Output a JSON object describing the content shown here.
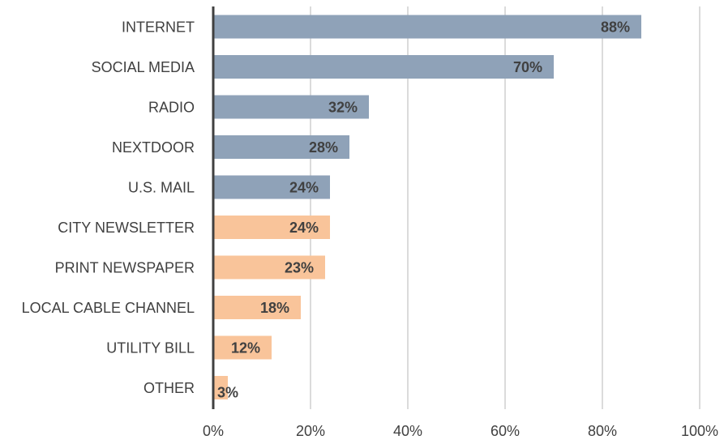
{
  "chart_data": {
    "type": "bar",
    "orientation": "horizontal",
    "categories": [
      "INTERNET",
      "SOCIAL MEDIA",
      "RADIO",
      "NEXTDOOR",
      "U.S. MAIL",
      "CITY NEWSLETTER",
      "PRINT NEWSPAPER",
      "LOCAL CABLE CHANNEL",
      "UTILITY BILL",
      "OTHER"
    ],
    "values": [
      88,
      70,
      32,
      28,
      24,
      24,
      23,
      18,
      12,
      3
    ],
    "data_labels": [
      "88%",
      "70%",
      "32%",
      "28%",
      "24%",
      "24%",
      "23%",
      "18%",
      "12%",
      "3%"
    ],
    "bar_colors": [
      "#8fa2b8",
      "#8fa2b8",
      "#8fa2b8",
      "#8fa2b8",
      "#8fa2b8",
      "#f9c49a",
      "#f9c49a",
      "#f9c49a",
      "#f9c49a",
      "#f9c49a"
    ],
    "xlim": [
      0,
      100
    ],
    "x_ticks": [
      0,
      20,
      40,
      60,
      80,
      100
    ],
    "x_tick_labels": [
      "0%",
      "20%",
      "40%",
      "60%",
      "80%",
      "100%"
    ],
    "title": "",
    "xlabel": "",
    "ylabel": "",
    "grid": "vertical",
    "legend": "none"
  },
  "colors": {
    "gridline": "#cfcfcf",
    "axis": "#404040",
    "text": "#404040"
  }
}
